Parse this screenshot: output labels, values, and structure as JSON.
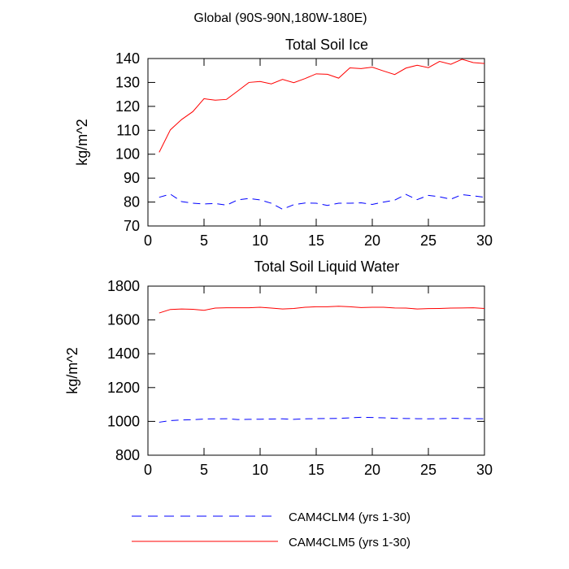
{
  "suptitle": "Global (90S-90N,180W-180E)",
  "legend": {
    "cam4_label": "CAM4CLM4 (yrs 1-30)",
    "cam5_label": "CAM4CLM5 (yrs 1-30)"
  },
  "colors": {
    "cam4": "#0000ff",
    "cam5": "#ff0000"
  },
  "chart_data": [
    {
      "type": "line",
      "title": "Total Soil Ice",
      "xlabel": "",
      "ylabel": "kg/m^2",
      "xlim": [
        0,
        30
      ],
      "ylim": [
        70,
        140
      ],
      "xticks": [
        0,
        5,
        10,
        15,
        20,
        25,
        30
      ],
      "yticks": [
        70,
        80,
        90,
        100,
        110,
        120,
        130,
        140
      ],
      "x": [
        1,
        2,
        3,
        4,
        5,
        6,
        7,
        8,
        9,
        10,
        11,
        12,
        13,
        14,
        15,
        16,
        17,
        18,
        19,
        20,
        21,
        22,
        23,
        24,
        25,
        26,
        27,
        28,
        29,
        30
      ],
      "series": [
        {
          "name": "CAM4CLM4 (yrs 1-30)",
          "color": "#0000ff",
          "dash": "dashed",
          "values": [
            82.0,
            83.3,
            80.2,
            79.5,
            79.2,
            79.4,
            78.7,
            80.9,
            81.5,
            80.9,
            79.5,
            77.0,
            78.9,
            79.6,
            79.5,
            78.6,
            79.5,
            79.5,
            79.7,
            79.0,
            80.0,
            80.8,
            83.2,
            81.0,
            82.8,
            82.2,
            81.2,
            83.1,
            82.6,
            82.0
          ]
        },
        {
          "name": "CAM4CLM5 (yrs 1-30)",
          "color": "#ff0000",
          "dash": "solid",
          "values": [
            100.8,
            110.2,
            114.5,
            117.8,
            123.2,
            122.6,
            122.9,
            126.4,
            130.0,
            130.4,
            129.4,
            131.3,
            129.9,
            131.6,
            133.6,
            133.4,
            131.8,
            136.1,
            135.8,
            136.4,
            134.8,
            133.3,
            136.0,
            137.2,
            136.2,
            138.8,
            137.6,
            139.7,
            138.3,
            137.9
          ]
        }
      ]
    },
    {
      "type": "line",
      "title": "Total Soil Liquid Water",
      "xlabel": "",
      "ylabel": "kg/m^2",
      "xlim": [
        0,
        30
      ],
      "ylim": [
        800,
        1800
      ],
      "xticks": [
        0,
        5,
        10,
        15,
        20,
        25,
        30
      ],
      "yticks": [
        800,
        1000,
        1200,
        1400,
        1600,
        1800
      ],
      "x": [
        1,
        2,
        3,
        4,
        5,
        6,
        7,
        8,
        9,
        10,
        11,
        12,
        13,
        14,
        15,
        16,
        17,
        18,
        19,
        20,
        21,
        22,
        23,
        24,
        25,
        26,
        27,
        28,
        29,
        30
      ],
      "series": [
        {
          "name": "CAM4CLM4 (yrs 1-30)",
          "color": "#0000ff",
          "dash": "dashed",
          "values": [
            995,
            1005,
            1008,
            1010,
            1014,
            1015,
            1016,
            1011,
            1012,
            1013,
            1014,
            1015,
            1012,
            1015,
            1016,
            1017,
            1018,
            1021,
            1024,
            1023,
            1021,
            1018,
            1017,
            1016,
            1015,
            1016,
            1018,
            1017,
            1016,
            1016
          ]
        },
        {
          "name": "CAM4CLM5 (yrs 1-30)",
          "color": "#ff0000",
          "dash": "solid",
          "values": [
            1641,
            1662,
            1665,
            1663,
            1657,
            1670,
            1672,
            1672,
            1672,
            1675,
            1670,
            1665,
            1668,
            1675,
            1678,
            1678,
            1681,
            1678,
            1673,
            1675,
            1675,
            1671,
            1670,
            1665,
            1667,
            1668,
            1670,
            1671,
            1672,
            1668
          ]
        }
      ]
    }
  ]
}
